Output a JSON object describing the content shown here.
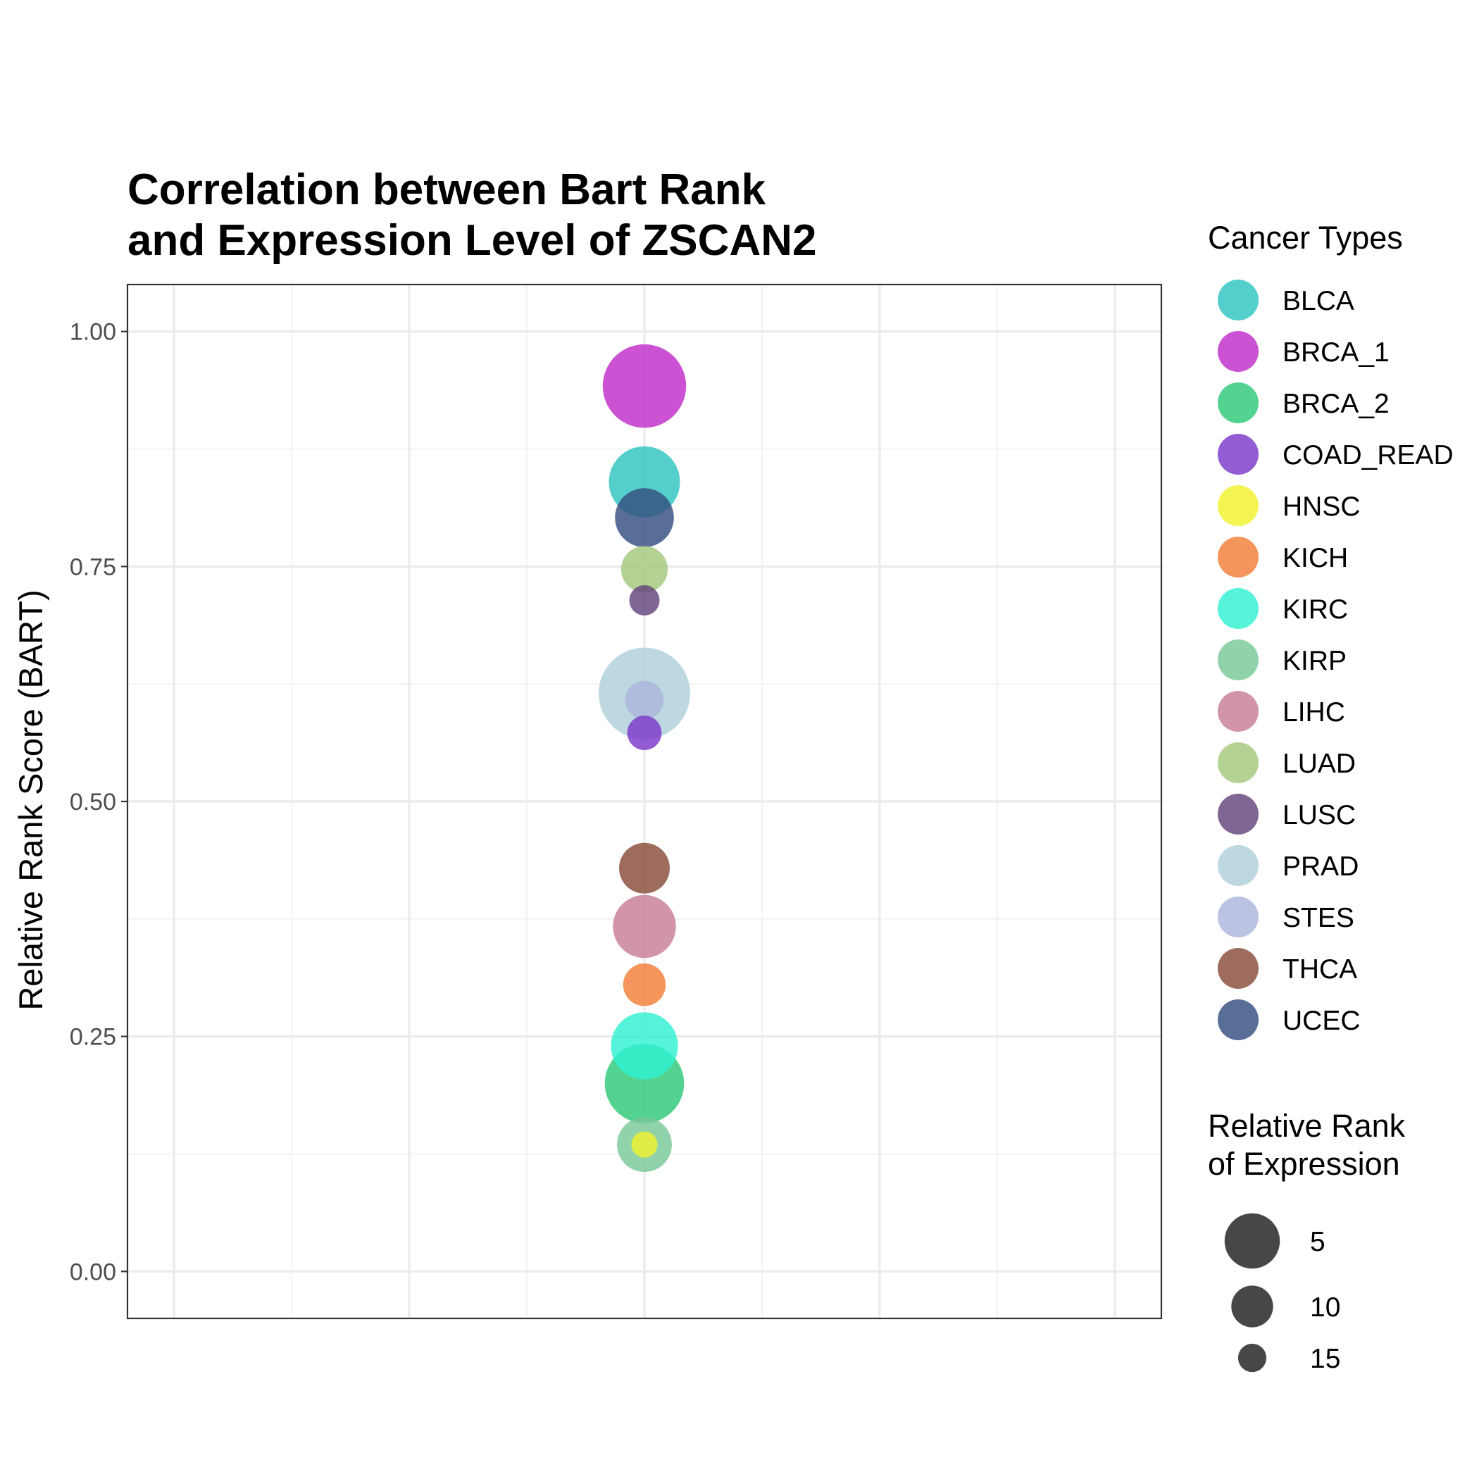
{
  "chart_data": {
    "type": "scatter",
    "title_lines": [
      "Correlation between Bart Rank",
      "and Expression Level of ZSCAN2"
    ],
    "xlabel": "",
    "ylabel": "Relative Rank Score (BART)",
    "ylim": [
      -0.05,
      1.05
    ],
    "yticks": [
      {
        "value": 0.0,
        "label": "0.00"
      },
      {
        "value": 0.25,
        "label": "0.25"
      },
      {
        "value": 0.5,
        "label": "0.50"
      },
      {
        "value": 0.75,
        "label": "0.75"
      },
      {
        "value": 1.0,
        "label": "1.00"
      }
    ],
    "grid": true,
    "color_legend": {
      "title": "Cancer Types",
      "placement": "right",
      "items": [
        {
          "name": "BLCA",
          "color": "#2ec4c0"
        },
        {
          "name": "BRCA_1",
          "color": "#c02cc8"
        },
        {
          "name": "BRCA_2",
          "color": "#2ec878"
        },
        {
          "name": "COAD_READ",
          "color": "#7b38c8"
        },
        {
          "name": "HNSC",
          "color": "#f2f230"
        },
        {
          "name": "KICH",
          "color": "#f27e38"
        },
        {
          "name": "KIRC",
          "color": "#30f2d2"
        },
        {
          "name": "KIRP",
          "color": "#78c896"
        },
        {
          "name": "LIHC",
          "color": "#c87c98"
        },
        {
          "name": "LUAD",
          "color": "#a4c87c"
        },
        {
          "name": "LUSC",
          "color": "#64447c"
        },
        {
          "name": "PRAD",
          "color": "#b0d0da"
        },
        {
          "name": "STES",
          "color": "#acb6dc"
        },
        {
          "name": "THCA",
          "color": "#884c38"
        },
        {
          "name": "UCEC",
          "color": "#344e80"
        }
      ]
    },
    "size_legend": {
      "title_lines": [
        "Relative Rank",
        "of Expression"
      ],
      "placement": "right",
      "color": "#333333",
      "items": [
        {
          "label": "5",
          "rank": 5
        },
        {
          "label": "10",
          "rank": 10
        },
        {
          "label": "15",
          "rank": 15
        }
      ]
    },
    "points": [
      {
        "name": "PRAD",
        "y": 0.615,
        "rank": 1
      },
      {
        "name": "BRCA_1",
        "y": 0.942,
        "rank": 3
      },
      {
        "name": "BRCA_2",
        "y": 0.2,
        "rank": 4
      },
      {
        "name": "BLCA",
        "y": 0.84,
        "rank": 6
      },
      {
        "name": "KIRC",
        "y": 0.24,
        "rank": 7
      },
      {
        "name": "LIHC",
        "y": 0.367,
        "rank": 8
      },
      {
        "name": "UCEC",
        "y": 0.802,
        "rank": 9
      },
      {
        "name": "KIRP",
        "y": 0.135,
        "rank": 10
      },
      {
        "name": "THCA",
        "y": 0.429,
        "rank": 11
      },
      {
        "name": "LUAD",
        "y": 0.747,
        "rank": 12
      },
      {
        "name": "KICH",
        "y": 0.305,
        "rank": 13
      },
      {
        "name": "STES",
        "y": 0.608,
        "rank": 14
      },
      {
        "name": "COAD_READ",
        "y": 0.573,
        "rank": 15
      },
      {
        "name": "LUSC",
        "y": 0.714,
        "rank": 16
      },
      {
        "name": "HNSC",
        "y": 0.135,
        "rank": 17
      }
    ]
  }
}
